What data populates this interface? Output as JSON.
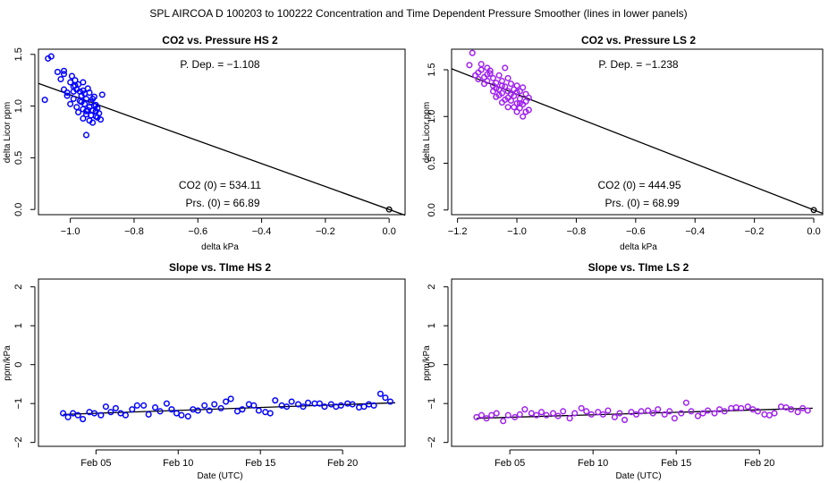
{
  "page_title": "SPL   AIRCOA D   100203 to 100222   Concentration and Time Dependent Pressure Smoother (lines in lower panels)",
  "colors": {
    "hs": "#0000ff",
    "ls": "#a020f0",
    "axis": "#000000",
    "line": "#000000"
  },
  "chart_data": [
    {
      "id": "p1",
      "type": "scatter",
      "title": "CO2 vs. Pressure HS 2",
      "xlabel": "delta kPa",
      "ylabel": "delta Licor ppm",
      "xlim": [
        -1.1,
        0.05
      ],
      "ylim": [
        -0.05,
        1.55
      ],
      "xticks": [
        -1.0,
        -0.8,
        -0.6,
        -0.4,
        -0.2,
        0.0
      ],
      "xtick_labels": [
        "−1.0",
        "−0.8",
        "−0.6",
        "−0.4",
        "−0.2",
        "0.0"
      ],
      "yticks": [
        0.0,
        0.5,
        1.0,
        1.5
      ],
      "ytick_labels": [
        "0.0",
        "0.5",
        "1.0",
        "1.5"
      ],
      "color": "#0000ff",
      "fit_line": {
        "intercept": 0.0,
        "slope": -1.108
      },
      "annotations": {
        "dep": "P. Dep. =  −1.108",
        "co2": "CO2 (0) =  534.11",
        "prs": "Prs. (0) =  66.89"
      },
      "origin_point": [
        0.0,
        0.0
      ],
      "points": [
        [
          -1.07,
          1.46
        ],
        [
          -1.06,
          1.48
        ],
        [
          -1.08,
          1.06
        ],
        [
          -1.04,
          1.33
        ],
        [
          -1.02,
          1.34
        ],
        [
          -1.03,
          1.26
        ],
        [
          -1.02,
          1.31
        ],
        [
          -1.01,
          1.13
        ],
        [
          -1.0,
          1.23
        ],
        [
          -0.995,
          1.29
        ],
        [
          -0.99,
          1.19
        ],
        [
          -0.985,
          1.25
        ],
        [
          -0.98,
          1.16
        ],
        [
          -0.975,
          1.21
        ],
        [
          -0.97,
          1.14
        ],
        [
          -0.965,
          1.1
        ],
        [
          -0.96,
          1.23
        ],
        [
          -0.955,
          1.02
        ],
        [
          -0.95,
          1.07
        ],
        [
          -0.945,
          1.17
        ],
        [
          -0.94,
          1.13
        ],
        [
          -0.935,
          1.04
        ],
        [
          -0.93,
          0.96
        ],
        [
          -0.925,
          1.09
        ],
        [
          -0.92,
          1.01
        ],
        [
          -0.915,
          0.89
        ],
        [
          -0.91,
          0.93
        ],
        [
          -0.96,
          0.97
        ],
        [
          -0.95,
          0.92
        ],
        [
          -0.94,
          0.86
        ],
        [
          -0.93,
          0.84
        ],
        [
          -0.92,
          0.95
        ],
        [
          -0.915,
          0.98
        ],
        [
          -0.9,
          1.11
        ],
        [
          -0.925,
          1.0
        ],
        [
          -0.99,
          1.07
        ],
        [
          -1.0,
          1.02
        ],
        [
          -0.98,
          0.99
        ],
        [
          -0.96,
          0.88
        ],
        [
          -0.95,
          0.72
        ],
        [
          -1.01,
          1.1
        ],
        [
          -0.97,
          1.05
        ],
        [
          -0.945,
          0.96
        ],
        [
          -0.935,
          0.91
        ],
        [
          -0.93,
          1.07
        ],
        [
          -0.905,
          0.87
        ],
        [
          -0.99,
          1.14
        ],
        [
          -0.975,
          0.94
        ],
        [
          -1.02,
          1.16
        ],
        [
          -0.965,
          1.04
        ],
        [
          -0.94,
          0.99
        ],
        [
          -0.955,
          1.12
        ],
        [
          -0.92,
          0.9
        ],
        [
          -0.985,
          1.2
        ],
        [
          -0.96,
          1.15
        ],
        [
          -0.95,
          0.95
        ]
      ]
    },
    {
      "id": "p2",
      "type": "scatter",
      "title": "CO2 vs. Pressure LS 2",
      "xlabel": "delta kPa",
      "ylabel": "delta Licor ppm",
      "xlim": [
        -1.22,
        0.03
      ],
      "ylim": [
        -0.05,
        1.72
      ],
      "xticks": [
        -1.2,
        -1.0,
        -0.8,
        -0.6,
        -0.4,
        -0.2,
        0.0
      ],
      "xtick_labels": [
        "−1.2",
        "−1.0",
        "−0.8",
        "−0.6",
        "−0.4",
        "−0.2",
        "0.0"
      ],
      "yticks": [
        0.0,
        0.5,
        1.0,
        1.5
      ],
      "ytick_labels": [
        "0.0",
        "0.5",
        "1.0",
        "1.5"
      ],
      "color": "#a020f0",
      "fit_line": {
        "intercept": 0.0,
        "slope": -1.238
      },
      "annotations": {
        "dep": "P. Dep. =  −1.238",
        "co2": "CO2 (0) =  444.95",
        "prs": "Prs. (0) =  68.99"
      },
      "origin_point": [
        0.0,
        0.0
      ],
      "points": [
        [
          -1.15,
          1.68
        ],
        [
          -1.16,
          1.55
        ],
        [
          -1.14,
          1.44
        ],
        [
          -1.13,
          1.47
        ],
        [
          -1.12,
          1.5
        ],
        [
          -1.11,
          1.42
        ],
        [
          -1.1,
          1.52
        ],
        [
          -1.1,
          1.38
        ],
        [
          -1.09,
          1.46
        ],
        [
          -1.08,
          1.41
        ],
        [
          -1.08,
          1.33
        ],
        [
          -1.07,
          1.36
        ],
        [
          -1.06,
          1.44
        ],
        [
          -1.06,
          1.29
        ],
        [
          -1.05,
          1.38
        ],
        [
          -1.05,
          1.25
        ],
        [
          -1.04,
          1.52
        ],
        [
          -1.04,
          1.32
        ],
        [
          -1.03,
          1.27
        ],
        [
          -1.03,
          1.2
        ],
        [
          -1.02,
          1.35
        ],
        [
          -1.02,
          1.17
        ],
        [
          -1.01,
          1.29
        ],
        [
          -1.01,
          1.22
        ],
        [
          -1.0,
          1.14
        ],
        [
          -1.0,
          1.26
        ],
        [
          -0.99,
          1.09
        ],
        [
          -0.99,
          1.19
        ],
        [
          -0.98,
          1.0
        ],
        [
          -0.98,
          1.13
        ],
        [
          -0.97,
          1.16
        ],
        [
          -0.97,
          1.24
        ],
        [
          -0.96,
          1.07
        ],
        [
          -0.96,
          1.2
        ],
        [
          -0.98,
          1.31
        ],
        [
          -1.12,
          1.56
        ],
        [
          -1.09,
          1.49
        ],
        [
          -1.07,
          1.21
        ],
        [
          -1.05,
          1.15
        ],
        [
          -1.03,
          1.41
        ],
        [
          -1.01,
          1.1
        ],
        [
          -0.99,
          1.27
        ],
        [
          -1.11,
          1.35
        ],
        [
          -1.08,
          1.27
        ],
        [
          -1.06,
          1.23
        ],
        [
          -1.04,
          1.18
        ],
        [
          -1.02,
          1.24
        ],
        [
          -1.0,
          1.33
        ],
        [
          -0.97,
          1.05
        ],
        [
          -1.13,
          1.4
        ],
        [
          -1.1,
          1.45
        ],
        [
          -1.07,
          1.3
        ],
        [
          -1.05,
          1.33
        ],
        [
          -1.03,
          1.1
        ],
        [
          -1.0,
          1.05
        ],
        [
          -0.99,
          1.14
        ]
      ]
    },
    {
      "id": "p3",
      "type": "scatter",
      "title": "Slope vs. TIme HS 2",
      "xlabel": "Date (UTC)",
      "ylabel": "ppm/kPa",
      "xlim": [
        1.5,
        23.8
      ],
      "ylim": [
        -2.1,
        2.2
      ],
      "xticks": [
        5,
        10,
        15,
        20
      ],
      "xtick_labels": [
        "Feb 05",
        "Feb 10",
        "Feb 15",
        "Feb 20"
      ],
      "yticks": [
        -2,
        -1,
        0,
        1,
        2
      ],
      "ytick_labels": [
        "−2",
        "−1",
        "0",
        "1",
        "2"
      ],
      "color": "#0000ff",
      "trend_line": [
        [
          3.0,
          -1.28
        ],
        [
          23.2,
          -0.98
        ]
      ],
      "points": [
        [
          3.0,
          -1.25
        ],
        [
          3.3,
          -1.35
        ],
        [
          3.6,
          -1.25
        ],
        [
          3.9,
          -1.3
        ],
        [
          4.2,
          -1.4
        ],
        [
          4.6,
          -1.22
        ],
        [
          4.9,
          -1.25
        ],
        [
          5.3,
          -1.3
        ],
        [
          5.6,
          -1.08
        ],
        [
          5.9,
          -1.22
        ],
        [
          6.2,
          -1.12
        ],
        [
          6.5,
          -1.25
        ],
        [
          6.8,
          -1.3
        ],
        [
          7.2,
          -1.15
        ],
        [
          7.5,
          -1.05
        ],
        [
          7.9,
          -1.05
        ],
        [
          8.2,
          -1.28
        ],
        [
          8.6,
          -1.1
        ],
        [
          8.9,
          -1.2
        ],
        [
          9.3,
          -1.0
        ],
        [
          9.6,
          -1.15
        ],
        [
          9.9,
          -1.25
        ],
        [
          10.2,
          -1.3
        ],
        [
          10.6,
          -1.33
        ],
        [
          10.9,
          -1.15
        ],
        [
          11.2,
          -1.18
        ],
        [
          11.6,
          -1.05
        ],
        [
          11.9,
          -1.18
        ],
        [
          12.2,
          -1.02
        ],
        [
          12.6,
          -1.12
        ],
        [
          12.9,
          -0.95
        ],
        [
          13.2,
          -0.88
        ],
        [
          13.6,
          -1.2
        ],
        [
          13.9,
          -1.15
        ],
        [
          14.3,
          -1.02
        ],
        [
          14.6,
          -1.05
        ],
        [
          14.9,
          -1.18
        ],
        [
          15.3,
          -1.22
        ],
        [
          15.6,
          -1.25
        ],
        [
          15.9,
          -0.92
        ],
        [
          16.3,
          -1.05
        ],
        [
          16.6,
          -1.08
        ],
        [
          16.9,
          -0.95
        ],
        [
          17.3,
          -1.02
        ],
        [
          17.6,
          -1.08
        ],
        [
          17.9,
          -0.98
        ],
        [
          18.3,
          -1.0
        ],
        [
          18.6,
          -1.0
        ],
        [
          18.9,
          -1.08
        ],
        [
          19.3,
          -1.02
        ],
        [
          19.6,
          -1.08
        ],
        [
          19.9,
          -1.05
        ],
        [
          20.3,
          -1.0
        ],
        [
          20.6,
          -1.02
        ],
        [
          21.0,
          -1.1
        ],
        [
          21.3,
          -1.08
        ],
        [
          21.6,
          -1.02
        ],
        [
          21.9,
          -1.05
        ],
        [
          22.3,
          -0.75
        ],
        [
          22.6,
          -0.85
        ],
        [
          22.9,
          -0.95
        ]
      ]
    },
    {
      "id": "p4",
      "type": "scatter",
      "title": "Slope vs. TIme LS 2",
      "xlabel": "Date (UTC)",
      "ylabel": "ppm/kPa",
      "xlim": [
        1.5,
        23.8
      ],
      "ylim": [
        -2.1,
        2.2
      ],
      "xticks": [
        5,
        10,
        15,
        20
      ],
      "xtick_labels": [
        "Feb 05",
        "Feb 10",
        "Feb 15",
        "Feb 20"
      ],
      "yticks": [
        -2,
        -1,
        0,
        1,
        2
      ],
      "ytick_labels": [
        "−2",
        "−1",
        "0",
        "1",
        "2"
      ],
      "color": "#a020f0",
      "trend_line": [
        [
          3.0,
          -1.38
        ],
        [
          23.2,
          -1.12
        ]
      ],
      "points": [
        [
          3.0,
          -1.35
        ],
        [
          3.3,
          -1.3
        ],
        [
          3.6,
          -1.38
        ],
        [
          3.9,
          -1.3
        ],
        [
          4.2,
          -1.25
        ],
        [
          4.6,
          -1.45
        ],
        [
          4.9,
          -1.3
        ],
        [
          5.3,
          -1.35
        ],
        [
          5.6,
          -1.28
        ],
        [
          5.9,
          -1.15
        ],
        [
          6.3,
          -1.25
        ],
        [
          6.6,
          -1.3
        ],
        [
          6.9,
          -1.22
        ],
        [
          7.2,
          -1.3
        ],
        [
          7.6,
          -1.25
        ],
        [
          7.9,
          -1.32
        ],
        [
          8.2,
          -1.2
        ],
        [
          8.6,
          -1.38
        ],
        [
          8.9,
          -1.25
        ],
        [
          9.3,
          -1.12
        ],
        [
          9.6,
          -1.2
        ],
        [
          9.9,
          -1.28
        ],
        [
          10.3,
          -1.22
        ],
        [
          10.6,
          -1.28
        ],
        [
          10.9,
          -1.18
        ],
        [
          11.3,
          -1.35
        ],
        [
          11.6,
          -1.25
        ],
        [
          11.9,
          -1.42
        ],
        [
          12.3,
          -1.22
        ],
        [
          12.6,
          -1.28
        ],
        [
          12.9,
          -1.2
        ],
        [
          13.3,
          -1.18
        ],
        [
          13.6,
          -1.25
        ],
        [
          13.9,
          -1.15
        ],
        [
          14.3,
          -1.28
        ],
        [
          14.6,
          -1.2
        ],
        [
          14.9,
          -1.38
        ],
        [
          15.3,
          -1.25
        ],
        [
          15.6,
          -0.98
        ],
        [
          15.9,
          -1.2
        ],
        [
          16.3,
          -1.32
        ],
        [
          16.6,
          -1.25
        ],
        [
          16.9,
          -1.18
        ],
        [
          17.3,
          -1.25
        ],
        [
          17.6,
          -1.15
        ],
        [
          17.9,
          -1.2
        ],
        [
          18.3,
          -1.12
        ],
        [
          18.6,
          -1.1
        ],
        [
          18.9,
          -1.12
        ],
        [
          19.3,
          -1.08
        ],
        [
          19.6,
          -1.15
        ],
        [
          19.9,
          -1.2
        ],
        [
          20.3,
          -1.28
        ],
        [
          20.6,
          -1.3
        ],
        [
          20.9,
          -1.25
        ],
        [
          21.3,
          -1.08
        ],
        [
          21.6,
          -1.1
        ],
        [
          21.9,
          -1.15
        ],
        [
          22.3,
          -1.22
        ],
        [
          22.6,
          -1.12
        ],
        [
          22.9,
          -1.18
        ]
      ]
    }
  ]
}
